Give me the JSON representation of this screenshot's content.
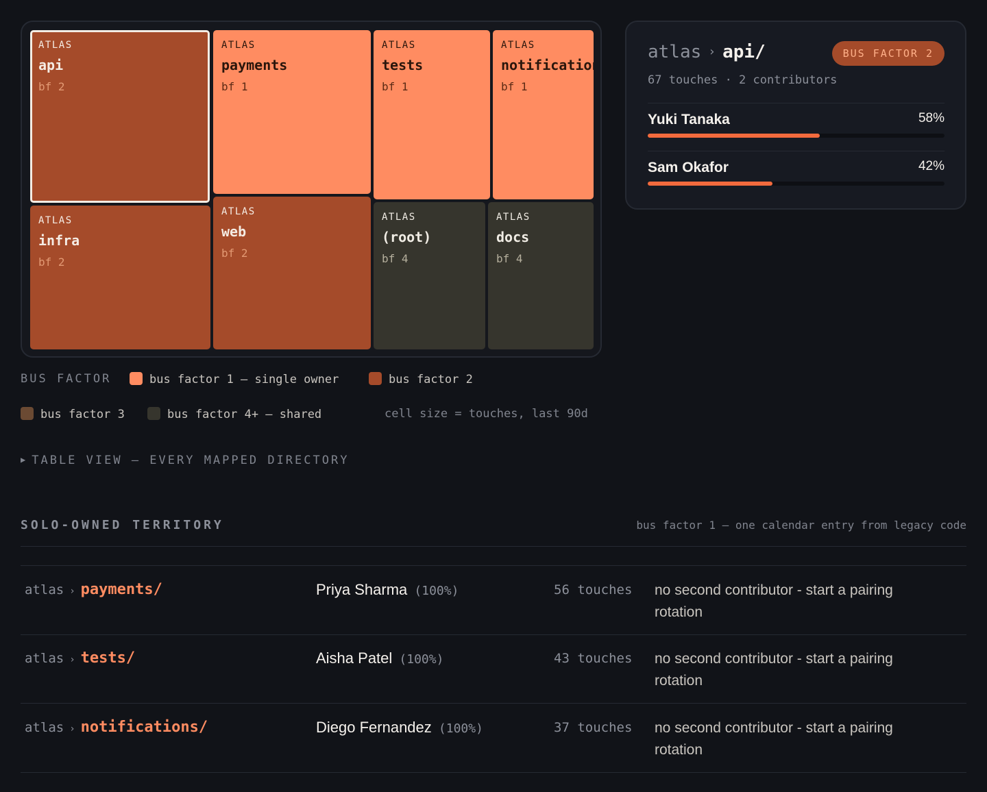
{
  "treemap": {
    "cells": [
      {
        "project": "ATLAS",
        "name": "api",
        "bf": "bf 2"
      },
      {
        "project": "ATLAS",
        "name": "payments",
        "bf": "bf 1"
      },
      {
        "project": "ATLAS",
        "name": "tests",
        "bf": "bf 1"
      },
      {
        "project": "ATLAS",
        "name": "notifications",
        "bf": "bf 1"
      },
      {
        "project": "ATLAS",
        "name": "infra",
        "bf": "bf 2"
      },
      {
        "project": "ATLAS",
        "name": "web",
        "bf": "bf 2"
      },
      {
        "project": "ATLAS",
        "name": "(root)",
        "bf": "bf 4"
      },
      {
        "project": "ATLAS",
        "name": "docs",
        "bf": "bf 4"
      }
    ]
  },
  "detail": {
    "project": "atlas",
    "separator": "›",
    "directory": "api/",
    "badge": "BUS FACTOR 2",
    "stats": "67 touches · 2 contributors",
    "contributors": [
      {
        "name": "Yuki Tanaka",
        "percent_label": "58%",
        "share": 0.58
      },
      {
        "name": "Sam Okafor",
        "percent_label": "42%",
        "share": 0.42
      }
    ]
  },
  "legend": {
    "title": "BUS FACTOR",
    "items": [
      {
        "label": "bus factor 1 — single owner",
        "color": "#ff8c61"
      },
      {
        "label": "bus factor 2",
        "color": "#a54b2a"
      },
      {
        "label": "bus factor 3",
        "color": "#6b4a33"
      },
      {
        "label": "bus factor 4+ — shared",
        "color": "#36352d"
      }
    ],
    "note": "cell size = touches, last 90d"
  },
  "table_view": {
    "label": "TABLE VIEW — EVERY MAPPED DIRECTORY",
    "icon": "triangle-right-icon"
  },
  "solo": {
    "title": "SOLO-OWNED TERRITORY",
    "note": "bus factor 1 — one calendar entry from legacy code",
    "rows": [
      {
        "project": "atlas",
        "separator": "›",
        "dir": "payments/",
        "owner": "Priya Sharma",
        "pct": "(100%)",
        "touches": "56 touches",
        "action": "no second contributor - start a pairing rotation"
      },
      {
        "project": "atlas",
        "separator": "›",
        "dir": "tests/",
        "owner": "Aisha Patel",
        "pct": "(100%)",
        "touches": "43 touches",
        "action": "no second contributor - start a pairing rotation"
      },
      {
        "project": "atlas",
        "separator": "›",
        "dir": "notifications/",
        "owner": "Diego Fernandez",
        "pct": "(100%)",
        "touches": "37 touches",
        "action": "no second contributor - start a pairing rotation"
      }
    ]
  },
  "colors": {
    "background": "#111318",
    "bf1": "#ff8c61",
    "bf2": "#a54b2a",
    "bf4": "#36352d",
    "accent": "#f26a3d"
  }
}
